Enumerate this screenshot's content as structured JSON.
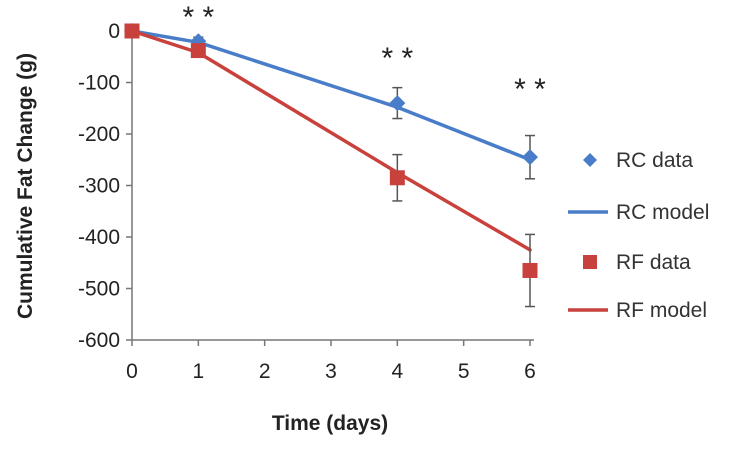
{
  "chart_data": {
    "type": "line",
    "title": "",
    "xlabel": "Time (days)",
    "ylabel": "Cumulative Fat Change (g)",
    "xlim": [
      0,
      6
    ],
    "ylim": [
      -600,
      0
    ],
    "xticks": [
      0,
      1,
      2,
      3,
      4,
      5,
      6
    ],
    "yticks": [
      0,
      -100,
      -200,
      -300,
      -400,
      -500,
      -600
    ],
    "grid": false,
    "legend_position": "right",
    "series": [
      {
        "name": "RC data",
        "kind": "scatter",
        "marker": "diamond",
        "color": "#4a7dc9",
        "x": [
          0,
          1,
          4,
          6
        ],
        "y": [
          0,
          -20,
          -140,
          -245
        ],
        "error": [
          0,
          8,
          30,
          42
        ]
      },
      {
        "name": "RC model",
        "kind": "line",
        "color": "#4a7dc9",
        "x": [
          0,
          1,
          4,
          6
        ],
        "y": [
          0,
          -22,
          -148,
          -250
        ]
      },
      {
        "name": "RF data",
        "kind": "scatter",
        "marker": "square",
        "color": "#c9413c",
        "x": [
          0,
          1,
          4,
          6
        ],
        "y": [
          0,
          -38,
          -285,
          -465
        ],
        "error": [
          0,
          8,
          45,
          70
        ]
      },
      {
        "name": "RF model",
        "kind": "line",
        "color": "#c9413c",
        "x": [
          0,
          1,
          4,
          6
        ],
        "y": [
          0,
          -42,
          -275,
          -425
        ]
      }
    ],
    "annotations": [
      {
        "text": "* *",
        "x": 1,
        "y": 0
      },
      {
        "text": "* *",
        "x": 4,
        "y": -80
      },
      {
        "text": "* *",
        "x": 6,
        "y": -140
      }
    ]
  }
}
